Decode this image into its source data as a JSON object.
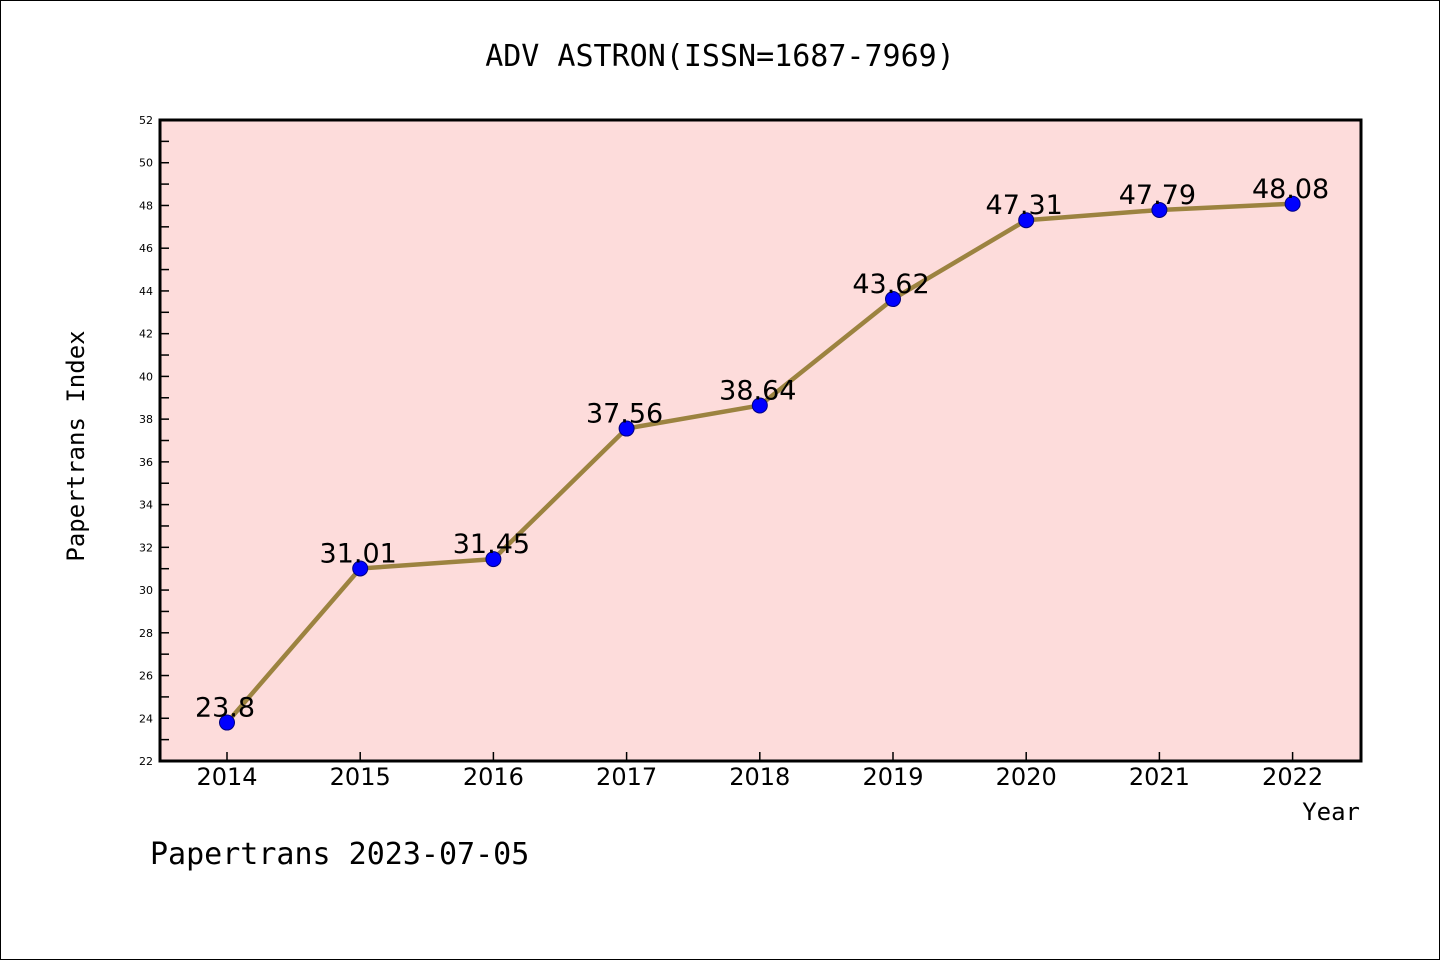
{
  "chart_data": {
    "type": "line",
    "title": "ADV ASTRON(ISSN=1687-7969)",
    "xlabel": "Year",
    "ylabel": "Papertrans Index",
    "categories": [
      "2014",
      "2015",
      "2016",
      "2017",
      "2018",
      "2019",
      "2020",
      "2021",
      "2022"
    ],
    "series": [
      {
        "values": [
          23.8,
          31.01,
          31.45,
          37.56,
          38.64,
          43.62,
          47.31,
          47.79,
          48.08
        ]
      }
    ],
    "data_labels": [
      "23.8",
      "31.01",
      "31.45",
      "37.56",
      "38.64",
      "43.62",
      "47.31",
      "47.79",
      "48.08"
    ],
    "ylim": [
      22,
      52
    ],
    "yticks": [
      22,
      24,
      26,
      28,
      30,
      32,
      34,
      36,
      38,
      40,
      42,
      44,
      46,
      48,
      50,
      52
    ],
    "grid": false,
    "colors": {
      "plot_background": "#fddcdb",
      "line": "#9c8340",
      "marker": "#0000ff",
      "marker_edge": "#000080"
    }
  },
  "footer": "Papertrans 2023-07-05"
}
